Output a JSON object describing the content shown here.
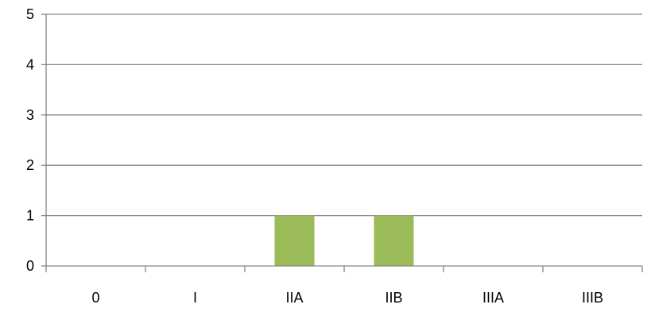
{
  "chart_data": {
    "type": "bar",
    "categories": [
      "0",
      "I",
      "IIA",
      "IIB",
      "IIIA",
      "IIIB"
    ],
    "values": [
      0,
      0,
      1,
      1,
      0,
      0
    ],
    "ylim": [
      0,
      5
    ],
    "yticks": [
      0,
      1,
      2,
      3,
      4,
      5
    ],
    "grid": true,
    "legend": "none",
    "bar_color": "#9bbb59",
    "grid_color": "#868686",
    "axis_color": "#868686"
  }
}
